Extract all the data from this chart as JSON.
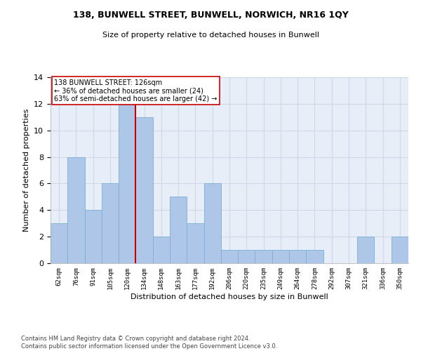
{
  "title": "138, BUNWELL STREET, BUNWELL, NORWICH, NR16 1QY",
  "subtitle": "Size of property relative to detached houses in Bunwell",
  "xlabel": "Distribution of detached houses by size in Bunwell",
  "ylabel": "Number of detached properties",
  "categories": [
    "62sqm",
    "76sqm",
    "91sqm",
    "105sqm",
    "120sqm",
    "134sqm",
    "148sqm",
    "163sqm",
    "177sqm",
    "192sqm",
    "206sqm",
    "220sqm",
    "235sqm",
    "249sqm",
    "264sqm",
    "278sqm",
    "292sqm",
    "307sqm",
    "321sqm",
    "336sqm",
    "350sqm"
  ],
  "values": [
    3,
    8,
    4,
    6,
    12,
    11,
    2,
    5,
    3,
    6,
    1,
    1,
    1,
    1,
    1,
    1,
    0,
    0,
    2,
    0,
    2
  ],
  "bar_color": "#aec6e8",
  "bar_edge_color": "#7bafd4",
  "vline_x": 4.5,
  "vline_color": "#cc0000",
  "annotation_text": "138 BUNWELL STREET: 126sqm\n← 36% of detached houses are smaller (24)\n63% of semi-detached houses are larger (42) →",
  "annotation_box_color": "white",
  "annotation_box_edge_color": "#cc0000",
  "footnote": "Contains HM Land Registry data © Crown copyright and database right 2024.\nContains public sector information licensed under the Open Government Licence v3.0.",
  "ylim": [
    0,
    14
  ],
  "yticks": [
    0,
    2,
    4,
    6,
    8,
    10,
    12,
    14
  ],
  "grid_color": "#d0d8e8",
  "background_color": "#e8eef8",
  "title_fontsize": 9,
  "subtitle_fontsize": 8,
  "ylabel_fontsize": 8,
  "xlabel_fontsize": 8,
  "xtick_fontsize": 6.5,
  "ytick_fontsize": 8,
  "footnote_fontsize": 6,
  "annot_fontsize": 7
}
